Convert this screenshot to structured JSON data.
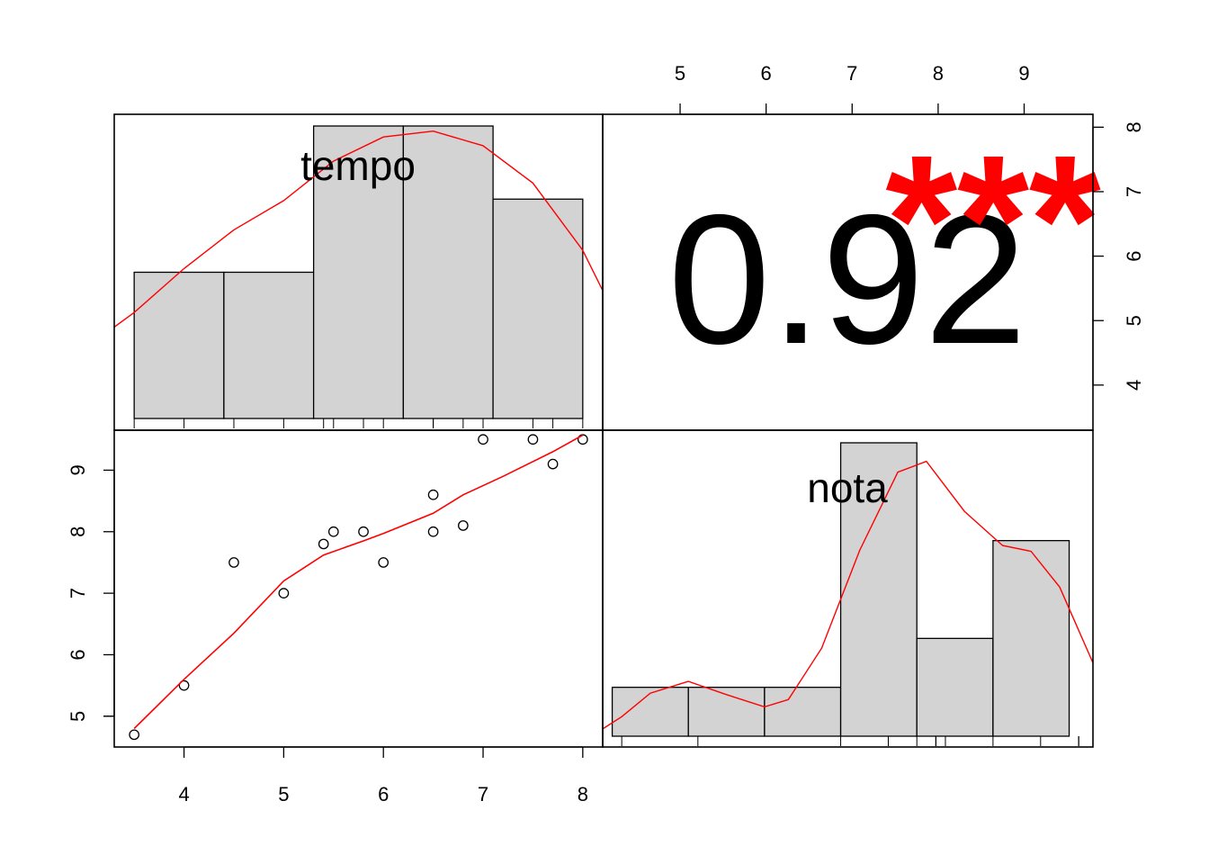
{
  "chart_data": {
    "type": "scatter",
    "variables": [
      "tempo",
      "nota"
    ],
    "correlation": {
      "value_label": "0.92",
      "significance": "***",
      "value": 0.92
    },
    "colors": {
      "fit": "#ff0000",
      "bars": "#d3d3d3",
      "stars": "#ff0000"
    },
    "points": {
      "tempo": [
        3.5,
        4.0,
        4.5,
        5.0,
        5.4,
        5.5,
        5.8,
        6.0,
        6.5,
        6.5,
        6.8,
        7.0,
        7.5,
        7.7,
        8.0
      ],
      "nota": [
        4.7,
        5.5,
        7.5,
        7.0,
        7.8,
        8.0,
        8.0,
        7.5,
        8.6,
        8.0,
        8.1,
        9.5,
        9.5,
        9.1,
        9.5
      ]
    },
    "smooth_line": {
      "x": [
        3.5,
        4.0,
        4.5,
        5.0,
        5.4,
        5.8,
        6.0,
        6.5,
        6.8,
        7.2,
        7.7,
        8.0
      ],
      "y": [
        4.8,
        5.6,
        6.35,
        7.2,
        7.62,
        7.85,
        7.97,
        8.3,
        8.6,
        8.9,
        9.3,
        9.57
      ]
    },
    "tempo_axis": {
      "ticks": [
        4,
        5,
        6,
        7,
        8
      ],
      "tick_labels": [
        "4",
        "5",
        "6",
        "7",
        "8"
      ],
      "range": [
        3.3,
        8.2
      ]
    },
    "nota_axis": {
      "ticks": [
        5,
        6,
        7,
        8,
        9
      ],
      "tick_labels": [
        "5",
        "6",
        "7",
        "8",
        "9"
      ],
      "range": [
        4.5,
        9.65
      ]
    },
    "upper_right_axis": {
      "top_ticks": [
        5,
        6,
        7,
        8,
        9
      ],
      "top_tick_labels": [
        "5",
        "6",
        "7",
        "8",
        "9"
      ],
      "top_range": [
        4.1,
        9.8
      ],
      "right_ticks": [
        4,
        5,
        6,
        7,
        8
      ],
      "right_tick_labels": [
        "4",
        "5",
        "6",
        "7",
        "8"
      ],
      "right_range": [
        3.3,
        8.2
      ]
    },
    "histograms": {
      "tempo": {
        "breaks": [
          3.5,
          4.4,
          5.3,
          6.2,
          7.1,
          8.0
        ],
        "counts": [
          2,
          2,
          4,
          4,
          3
        ],
        "density_x": [
          3.3,
          3.5,
          4.0,
          4.5,
          5.0,
          5.5,
          6.0,
          6.5,
          7.0,
          7.5,
          8.0,
          8.2
        ],
        "density_y": [
          1.25,
          1.45,
          2.05,
          2.58,
          2.98,
          3.52,
          3.85,
          3.93,
          3.73,
          3.22,
          2.3,
          1.75
        ]
      },
      "nota": {
        "breaks": [
          4.6,
          5.4,
          6.2,
          7.0,
          7.8,
          8.6,
          9.4
        ],
        "counts": [
          1,
          1,
          1,
          6,
          2,
          4
        ],
        "density_x": [
          4.5,
          4.7,
          5.0,
          5.4,
          5.8,
          6.2,
          6.45,
          6.8,
          7.2,
          7.6,
          7.9,
          8.3,
          8.7,
          9.0,
          9.3,
          9.65
        ],
        "density_y": [
          0.15,
          0.4,
          0.88,
          1.12,
          0.85,
          0.6,
          0.75,
          1.8,
          3.8,
          5.4,
          5.62,
          4.6,
          3.9,
          3.78,
          3.05,
          1.5
        ]
      }
    }
  }
}
